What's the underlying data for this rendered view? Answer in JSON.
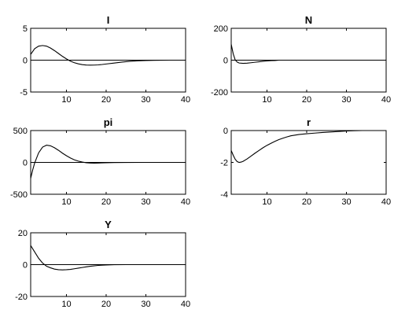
{
  "chart_data": [
    {
      "type": "line",
      "title": "I",
      "xlim": [
        1,
        40
      ],
      "ylim": [
        -5,
        5
      ],
      "xticks": [
        10,
        20,
        30,
        40
      ],
      "yticks": [
        -5,
        0,
        5
      ],
      "zero_line": true,
      "series": [
        {
          "x": [
            1,
            2,
            3,
            4,
            5,
            6,
            7,
            8,
            9,
            10,
            11,
            12,
            13,
            14,
            15,
            16,
            17,
            18,
            19,
            20,
            22,
            24,
            26,
            28,
            30,
            32,
            34,
            36,
            38,
            40
          ],
          "values": [
            0.9,
            1.8,
            2.2,
            2.3,
            2.2,
            1.9,
            1.5,
            1.05,
            0.6,
            0.2,
            -0.15,
            -0.4,
            -0.58,
            -0.7,
            -0.76,
            -0.78,
            -0.77,
            -0.74,
            -0.68,
            -0.6,
            -0.45,
            -0.3,
            -0.18,
            -0.1,
            -0.05,
            -0.02,
            -0.01,
            0,
            0,
            0
          ]
        }
      ]
    },
    {
      "type": "line",
      "title": "N",
      "xlim": [
        1,
        40
      ],
      "ylim": [
        -200,
        200
      ],
      "xticks": [
        10,
        20,
        30,
        40
      ],
      "yticks": [
        -200,
        0,
        200
      ],
      "zero_line": true,
      "series": [
        {
          "x": [
            1,
            1.5,
            2,
            2.5,
            3,
            4,
            5,
            6,
            7,
            8,
            9,
            10,
            11,
            12,
            13
          ],
          "values": [
            100,
            40,
            2,
            -12,
            -18,
            -20,
            -19,
            -16,
            -13,
            -10,
            -7,
            -5,
            -3,
            -2,
            0
          ]
        }
      ]
    },
    {
      "type": "line",
      "title": "pi",
      "xlim": [
        1,
        40
      ],
      "ylim": [
        -500,
        500
      ],
      "xticks": [
        10,
        20,
        30,
        40
      ],
      "yticks": [
        -500,
        0,
        500
      ],
      "zero_line": true,
      "series": [
        {
          "x": [
            1,
            1.5,
            2,
            3,
            4,
            5,
            6,
            7,
            8,
            9,
            10,
            11,
            12,
            13,
            14,
            15,
            16,
            17,
            18,
            20,
            22,
            25,
            30,
            35,
            40
          ],
          "values": [
            -250,
            -120,
            -10,
            150,
            240,
            270,
            260,
            230,
            190,
            145,
            105,
            70,
            40,
            20,
            5,
            -5,
            -10,
            -12,
            -10,
            -6,
            -3,
            -1,
            0,
            0,
            0
          ]
        }
      ]
    },
    {
      "type": "line",
      "title": "r",
      "xlim": [
        1,
        40
      ],
      "ylim": [
        -4,
        0
      ],
      "xticks": [
        10,
        20,
        30,
        40
      ],
      "yticks": [
        -4,
        -2,
        0
      ],
      "zero_line": false,
      "series": [
        {
          "x": [
            1,
            1.5,
            2,
            2.5,
            3,
            3.5,
            4,
            5,
            6,
            7,
            8,
            9,
            10,
            11,
            12,
            13,
            14,
            15,
            16,
            18,
            20,
            22,
            24,
            26,
            28,
            30,
            32,
            34
          ],
          "values": [
            -1.25,
            -1.55,
            -1.8,
            -1.95,
            -2.0,
            -1.98,
            -1.93,
            -1.78,
            -1.6,
            -1.42,
            -1.25,
            -1.08,
            -0.93,
            -0.8,
            -0.68,
            -0.57,
            -0.48,
            -0.4,
            -0.33,
            -0.25,
            -0.2,
            -0.16,
            -0.12,
            -0.09,
            -0.06,
            -0.03,
            -0.01,
            0
          ]
        }
      ]
    },
    {
      "type": "line",
      "title": "Y",
      "xlim": [
        1,
        40
      ],
      "ylim": [
        -20,
        20
      ],
      "xticks": [
        10,
        20,
        30,
        40
      ],
      "yticks": [
        -20,
        0,
        20
      ],
      "zero_line": true,
      "series": [
        {
          "x": [
            1,
            2,
            3,
            4,
            5,
            6,
            7,
            8,
            9,
            10,
            11,
            12,
            13,
            14,
            15,
            16,
            18,
            20,
            22,
            25,
            30,
            35,
            40
          ],
          "values": [
            12,
            8,
            4,
            1,
            -1,
            -2,
            -2.8,
            -3.2,
            -3.3,
            -3.2,
            -3.0,
            -2.6,
            -2.2,
            -1.8,
            -1.4,
            -1.0,
            -0.5,
            -0.2,
            -0.05,
            0,
            0,
            0,
            0
          ]
        }
      ]
    }
  ]
}
